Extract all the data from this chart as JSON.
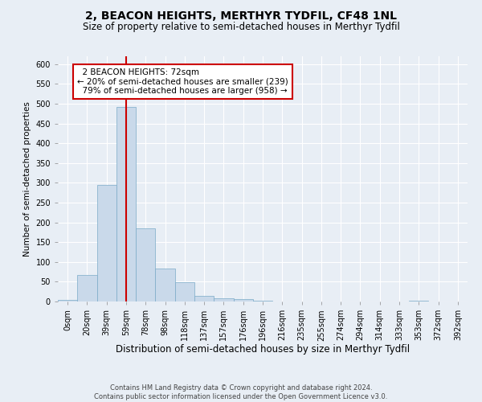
{
  "title": "2, BEACON HEIGHTS, MERTHYR TYDFIL, CF48 1NL",
  "subtitle": "Size of property relative to semi-detached houses in Merthyr Tydfil",
  "xlabel": "Distribution of semi-detached houses by size in Merthyr Tydfil",
  "ylabel": "Number of semi-detached properties",
  "bar_color": "#c9d9ea",
  "bar_edge_color": "#7aaac8",
  "background_color": "#e8eef5",
  "grid_color": "#ffffff",
  "annotation_text": "  2 BEACON HEIGHTS: 72sqm\n← 20% of semi-detached houses are smaller (239)\n  79% of semi-detached houses are larger (958) →",
  "vline_x": 3.0,
  "vline_color": "#cc0000",
  "annotation_box_color": "#ffffff",
  "annotation_box_edge": "#cc0000",
  "bin_labels": [
    "0sqm",
    "20sqm",
    "39sqm",
    "59sqm",
    "78sqm",
    "98sqm",
    "118sqm",
    "137sqm",
    "157sqm",
    "176sqm",
    "196sqm",
    "216sqm",
    "235sqm",
    "255sqm",
    "274sqm",
    "294sqm",
    "314sqm",
    "333sqm",
    "353sqm",
    "372sqm",
    "392sqm"
  ],
  "bar_heights": [
    4,
    68,
    295,
    492,
    185,
    83,
    48,
    15,
    9,
    6,
    3,
    1,
    0,
    0,
    0,
    0,
    0,
    0,
    2,
    0,
    0
  ],
  "ylim": [
    0,
    620
  ],
  "yticks": [
    0,
    50,
    100,
    150,
    200,
    250,
    300,
    350,
    400,
    450,
    500,
    550,
    600
  ],
  "footnote": "Contains HM Land Registry data © Crown copyright and database right 2024.\nContains public sector information licensed under the Open Government Licence v3.0.",
  "title_fontsize": 10,
  "subtitle_fontsize": 8.5,
  "xlabel_fontsize": 8.5,
  "ylabel_fontsize": 7.5,
  "tick_fontsize": 7,
  "annotation_fontsize": 7.5,
  "footnote_fontsize": 6
}
